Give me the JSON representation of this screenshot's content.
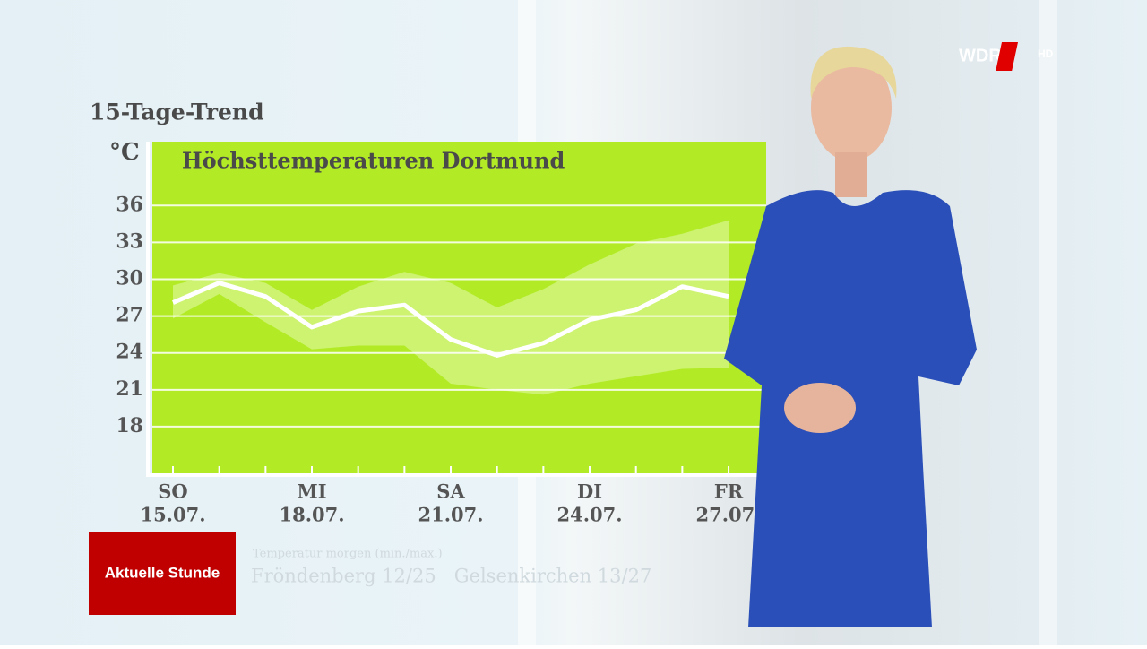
{
  "header": {
    "chart_label": "15-Tage-Trend",
    "unit": "°C",
    "logo": "WDR",
    "logo_suffix": "HD"
  },
  "chart_data": {
    "type": "line",
    "title": "Höchsttemperaturen Dortmund",
    "categories": [
      "15.07.",
      null,
      null,
      "18.07.",
      null,
      null,
      "21.07.",
      null,
      null,
      "24.07.",
      null,
      null,
      "27.07."
    ],
    "weekdays": [
      "SO",
      null,
      null,
      "MI",
      null,
      null,
      "SA",
      null,
      null,
      "DI",
      null,
      null,
      "FR"
    ],
    "series": [
      {
        "color": "#ffffff",
        "values": [
          28.1,
          29.7,
          28.6,
          26.1,
          27.4,
          27.9,
          25.1,
          23.8,
          24.8,
          26.7,
          27.5,
          29.4,
          28.6
        ]
      }
    ],
    "band": {
      "color": "#d6f58a",
      "upper": [
        29.5,
        30.5,
        29.7,
        27.5,
        29.4,
        30.6,
        29.7,
        27.7,
        29.2,
        31.2,
        32.9,
        33.7,
        34.8
      ],
      "lower": [
        26.8,
        28.8,
        26.5,
        24.3,
        24.6,
        24.6,
        21.5,
        21.0,
        20.6,
        21.5,
        22.1,
        22.7,
        22.8
      ]
    },
    "ylim": [
      14.2,
      41.2
    ],
    "yticks": [
      18,
      21,
      24,
      27,
      30,
      33,
      36
    ],
    "grid": true,
    "background": "#b2eb26"
  },
  "ticker": {
    "brand": "Aktuelle Stunde",
    "caption": "Temperatur morgen (min./max.)",
    "text": "Fröndenberg 12/25   Gelsenkirchen 13/27"
  }
}
